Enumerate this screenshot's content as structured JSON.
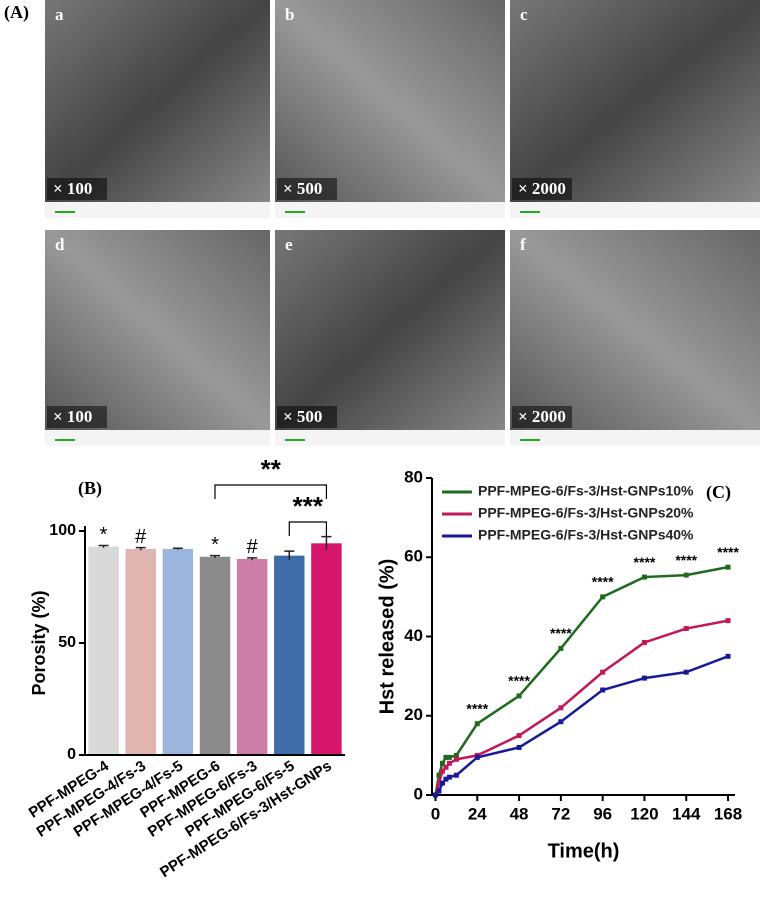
{
  "panel_a": {
    "label": "(A)",
    "images": [
      {
        "letter": "a",
        "magnification": "× 100"
      },
      {
        "letter": "b",
        "magnification": "× 500"
      },
      {
        "letter": "c",
        "magnification": "× 2000"
      },
      {
        "letter": "d",
        "magnification": "× 100"
      },
      {
        "letter": "e",
        "magnification": "× 500"
      },
      {
        "letter": "f",
        "magnification": "× 2000"
      }
    ]
  },
  "chart_data": [
    {
      "type": "bar",
      "title": "(B)",
      "y_label": "Porosity (%)",
      "categories": [
        "PPF-MPEG-4",
        "PPF-MPEG-4/Fs-3",
        "PPF-MPEG-4/Fs-5",
        "PPF-MPEG-6",
        "PPF-MPEG-6/Fs-3",
        "PPF-MPEG-6/Fs-5",
        "PPF-MPEG-6/Fs-3/Hst-GNPs"
      ],
      "values": [
        93,
        92,
        92,
        88.5,
        87.5,
        89,
        94.5
      ],
      "errors": [
        0.5,
        0.6,
        0.3,
        0.5,
        0.5,
        2,
        3
      ],
      "colors": [
        "#d9d9d9",
        "#e0b4b0",
        "#9bb6dd",
        "#8c8c8c",
        "#cc7ea6",
        "#3d6ca8",
        "#d6166b"
      ],
      "annotations": [
        "*",
        "#",
        null,
        "*",
        "#",
        null,
        null
      ],
      "brackets": [
        {
          "from": 3,
          "to": 6,
          "label": "**"
        },
        {
          "from": 5,
          "to": 6,
          "label": "***"
        }
      ],
      "ylim": [
        0,
        100
      ],
      "yticks": [
        0,
        50,
        100
      ]
    },
    {
      "type": "line",
      "title": "(C)",
      "y_label": "Hst released (%)",
      "x_label": "Time(h)",
      "x": [
        0,
        2,
        4,
        6,
        8,
        12,
        24,
        48,
        72,
        96,
        120,
        144,
        168
      ],
      "series": [
        {
          "name": "PPF-MPEG-6/Fs-3/Hst-GNPs10%",
          "color": "#1e6b1e",
          "values": [
            0,
            5,
            8,
            9.5,
            9.5,
            10,
            18,
            25,
            37,
            50,
            55,
            55.5,
            57.5
          ]
        },
        {
          "name": "PPF-MPEG-6/Fs-3/Hst-GNPs20%",
          "color": "#c2185b",
          "values": [
            0,
            3,
            6,
            7,
            8,
            9,
            10,
            15,
            22,
            31,
            38.5,
            42,
            44
          ]
        },
        {
          "name": "PPF-MPEG-6/Fs-3/Hst-GNPs40%",
          "color": "#1a1a99",
          "values": [
            0,
            1,
            3,
            4,
            4.5,
            5,
            9.5,
            12,
            18.5,
            26.5,
            29.5,
            31,
            35
          ]
        }
      ],
      "annotations": {
        "x": [
          24,
          48,
          72,
          96,
          120,
          144,
          168
        ],
        "label": "****"
      },
      "xlim": [
        -2,
        172
      ],
      "xticks": [
        0,
        24,
        48,
        72,
        96,
        120,
        144,
        168
      ],
      "ylim": [
        0,
        80
      ],
      "yticks": [
        0,
        20,
        40,
        60,
        80
      ],
      "legend": "top-left"
    }
  ]
}
